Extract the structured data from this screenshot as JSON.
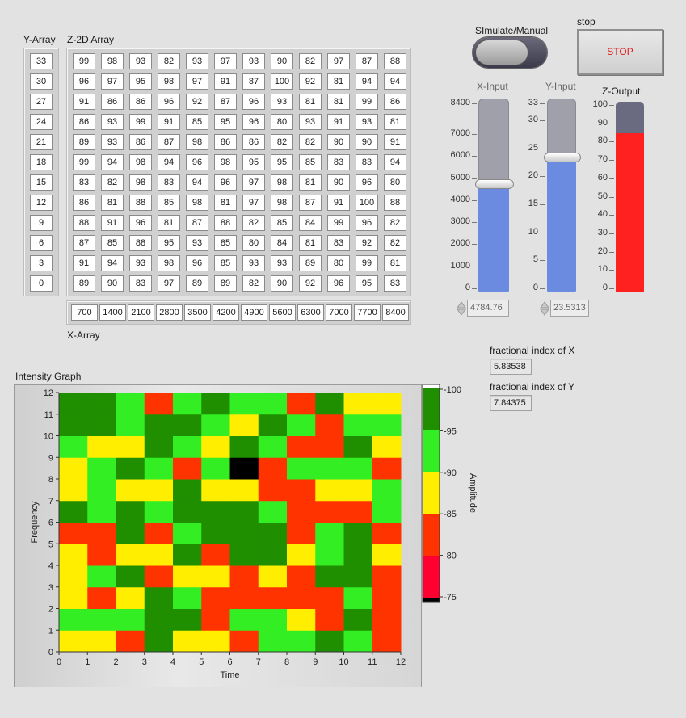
{
  "labels": {
    "y_array": "Y-Array",
    "z_array": "Z-2D Array",
    "x_array": "X-Array",
    "simulate": "SImulate/Manual",
    "stop_caption": "stop",
    "stop_button": "STOP",
    "x_input": "X-Input",
    "y_input": "Y-Input",
    "z_output": "Z-Output",
    "frac_x": "fractional index of X",
    "frac_y": "fractional index of Y",
    "intensity_graph": "Intensity Graph"
  },
  "y_array": [
    "33",
    "30",
    "27",
    "24",
    "21",
    "18",
    "15",
    "12",
    "9",
    "6",
    "3",
    "0"
  ],
  "x_array": [
    "700",
    "1400",
    "2100",
    "2800",
    "3500",
    "4200",
    "4900",
    "5600",
    "6300",
    "7000",
    "7700",
    "8400"
  ],
  "z_array": [
    [
      "99",
      "98",
      "93",
      "82",
      "93",
      "97",
      "93",
      "90",
      "82",
      "97",
      "87",
      "88"
    ],
    [
      "96",
      "97",
      "95",
      "98",
      "97",
      "91",
      "87",
      "100",
      "92",
      "81",
      "94",
      "94"
    ],
    [
      "91",
      "86",
      "86",
      "96",
      "92",
      "87",
      "96",
      "93",
      "81",
      "81",
      "99",
      "86"
    ],
    [
      "86",
      "93",
      "99",
      "91",
      "85",
      "95",
      "96",
      "80",
      "93",
      "91",
      "93",
      "81"
    ],
    [
      "89",
      "93",
      "86",
      "87",
      "98",
      "86",
      "86",
      "82",
      "82",
      "90",
      "90",
      "91"
    ],
    [
      "99",
      "94",
      "98",
      "94",
      "96",
      "98",
      "95",
      "95",
      "85",
      "83",
      "83",
      "94"
    ],
    [
      "83",
      "82",
      "98",
      "83",
      "94",
      "96",
      "97",
      "98",
      "81",
      "90",
      "96",
      "80"
    ],
    [
      "86",
      "81",
      "88",
      "85",
      "98",
      "81",
      "97",
      "98",
      "87",
      "91",
      "100",
      "88"
    ],
    [
      "88",
      "91",
      "96",
      "81",
      "87",
      "88",
      "82",
      "85",
      "84",
      "99",
      "96",
      "82"
    ],
    [
      "87",
      "85",
      "88",
      "95",
      "93",
      "85",
      "80",
      "84",
      "81",
      "83",
      "92",
      "82"
    ],
    [
      "91",
      "94",
      "93",
      "98",
      "96",
      "85",
      "93",
      "93",
      "89",
      "80",
      "99",
      "81"
    ],
    [
      "89",
      "90",
      "83",
      "97",
      "89",
      "89",
      "82",
      "90",
      "92",
      "96",
      "95",
      "83"
    ]
  ],
  "x_input": {
    "value": "4784.76",
    "value_num": 4784.76,
    "max": 8400,
    "scale": [
      "8400",
      "7000",
      "6000",
      "5000",
      "4000",
      "3000",
      "2000",
      "1000",
      "0"
    ]
  },
  "y_input": {
    "value": "23.5313",
    "value_num": 23.5313,
    "max": 33,
    "scale": [
      "33",
      "30",
      "25",
      "20",
      "15",
      "10",
      "5",
      "0"
    ]
  },
  "z_output": {
    "value_num": 85,
    "max": 100,
    "scale": [
      "100",
      "90",
      "80",
      "70",
      "60",
      "50",
      "40",
      "30",
      "20",
      "10",
      "0"
    ],
    "fill_color": "#ff2020",
    "empty_color": "#6a6a80"
  },
  "frac_x": "5.83538",
  "frac_y": "7.84375",
  "chart_data": {
    "type": "heatmap",
    "title": "Intensity Graph",
    "xlabel": "Time",
    "ylabel": "Frequency",
    "zlabel": "Amplitude",
    "xlim": [
      0,
      12
    ],
    "ylim": [
      0,
      12
    ],
    "x_ticks": [
      "0",
      "1",
      "2",
      "3",
      "4",
      "5",
      "6",
      "7",
      "8",
      "9",
      "10",
      "11",
      "12"
    ],
    "y_ticks": [
      "0",
      "1",
      "2",
      "3",
      "4",
      "5",
      "6",
      "7",
      "8",
      "9",
      "10",
      "11",
      "12"
    ],
    "color_scale_ticks": [
      "100",
      "95",
      "90",
      "85",
      "80",
      "75"
    ],
    "color_scale_colors": [
      "#ffffff",
      "#1f8f00",
      "#33ee22",
      "#ffee00",
      "#ff3300",
      "#ff0030",
      "#000000"
    ],
    "rows_from_bottom": [
      [
        89,
        90,
        83,
        97,
        89,
        89,
        82,
        90,
        92,
        96,
        95,
        83
      ],
      [
        91,
        94,
        93,
        98,
        96,
        85,
        93,
        93,
        89,
        80,
        99,
        81
      ],
      [
        87,
        85,
        88,
        95,
        93,
        85,
        80,
        84,
        81,
        83,
        92,
        82
      ],
      [
        88,
        91,
        96,
        81,
        87,
        88,
        82,
        85,
        84,
        99,
        96,
        82
      ],
      [
        86,
        81,
        88,
        85,
        98,
        81,
        97,
        98,
        87,
        91,
        100,
        88
      ],
      [
        83,
        82,
        98,
        83,
        94,
        96,
        97,
        98,
        81,
        90,
        96,
        80
      ],
      [
        99,
        94,
        98,
        94,
        96,
        98,
        95,
        95,
        85,
        83,
        83,
        94
      ],
      [
        89,
        93,
        86,
        87,
        98,
        86,
        86,
        82,
        82,
        90,
        90,
        91
      ],
      [
        86,
        93,
        99,
        91,
        85,
        95,
        96,
        80,
        93,
        91,
        93,
        81
      ],
      [
        91,
        86,
        86,
        96,
        92,
        87,
        96,
        93,
        81,
        81,
        99,
        86
      ],
      [
        96,
        97,
        95,
        98,
        97,
        91,
        87,
        100,
        92,
        81,
        94,
        94
      ],
      [
        99,
        98,
        93,
        82,
        93,
        97,
        93,
        90,
        82,
        97,
        87,
        88
      ]
    ],
    "colors_from_bottom": [
      [
        "#ffee00",
        "#ffee00",
        "#ff3300",
        "#1f8f00",
        "#ffee00",
        "#ffee00",
        "#ff3300",
        "#33ee22",
        "#33ee22",
        "#1f8f00",
        "#33ee22",
        "#ff3300"
      ],
      [
        "#33ee22",
        "#33ee22",
        "#33ee22",
        "#1f8f00",
        "#1f8f00",
        "#ff3300",
        "#33ee22",
        "#33ee22",
        "#ffee00",
        "#ff3300",
        "#1f8f00",
        "#ff3300"
      ],
      [
        "#ffee00",
        "#ff3300",
        "#ffee00",
        "#1f8f00",
        "#33ee22",
        "#ff3300",
        "#ff3300",
        "#ff3300",
        "#ff3300",
        "#ff3300",
        "#33ee22",
        "#ff3300"
      ],
      [
        "#ffee00",
        "#33ee22",
        "#1f8f00",
        "#ff3300",
        "#ffee00",
        "#ffee00",
        "#ff3300",
        "#ffee00",
        "#ff3300",
        "#1f8f00",
        "#1f8f00",
        "#ff3300"
      ],
      [
        "#ffee00",
        "#ff3300",
        "#ffee00",
        "#ffee00",
        "#1f8f00",
        "#ff3300",
        "#1f8f00",
        "#1f8f00",
        "#ffee00",
        "#33ee22",
        "#1f8f00",
        "#ffee00"
      ],
      [
        "#ff3300",
        "#ff3300",
        "#1f8f00",
        "#ff3300",
        "#33ee22",
        "#1f8f00",
        "#1f8f00",
        "#1f8f00",
        "#ff3300",
        "#33ee22",
        "#1f8f00",
        "#ff3300"
      ],
      [
        "#1f8f00",
        "#33ee22",
        "#1f8f00",
        "#33ee22",
        "#1f8f00",
        "#1f8f00",
        "#1f8f00",
        "#33ee22",
        "#ff3300",
        "#ff3300",
        "#ff3300",
        "#33ee22"
      ],
      [
        "#ffee00",
        "#33ee22",
        "#ffee00",
        "#ffee00",
        "#1f8f00",
        "#ffee00",
        "#ffee00",
        "#ff3300",
        "#ff3300",
        "#ffee00",
        "#ffee00",
        "#33ee22"
      ],
      [
        "#ffee00",
        "#33ee22",
        "#1f8f00",
        "#33ee22",
        "#ff3300",
        "#33ee22",
        "#000000",
        "#ff3300",
        "#33ee22",
        "#33ee22",
        "#33ee22",
        "#ff3300"
      ],
      [
        "#33ee22",
        "#ffee00",
        "#ffee00",
        "#1f8f00",
        "#33ee22",
        "#ffee00",
        "#1f8f00",
        "#33ee22",
        "#ff3300",
        "#ff3300",
        "#1f8f00",
        "#ffee00"
      ],
      [
        "#1f8f00",
        "#1f8f00",
        "#33ee22",
        "#1f8f00",
        "#1f8f00",
        "#33ee22",
        "#ffee00",
        "#1f8f00",
        "#33ee22",
        "#ff3300",
        "#33ee22",
        "#33ee22"
      ],
      [
        "#1f8f00",
        "#1f8f00",
        "#33ee22",
        "#ff3300",
        "#33ee22",
        "#1f8f00",
        "#33ee22",
        "#33ee22",
        "#ff3300",
        "#1f8f00",
        "#ffee00",
        "#ffee00"
      ]
    ]
  }
}
